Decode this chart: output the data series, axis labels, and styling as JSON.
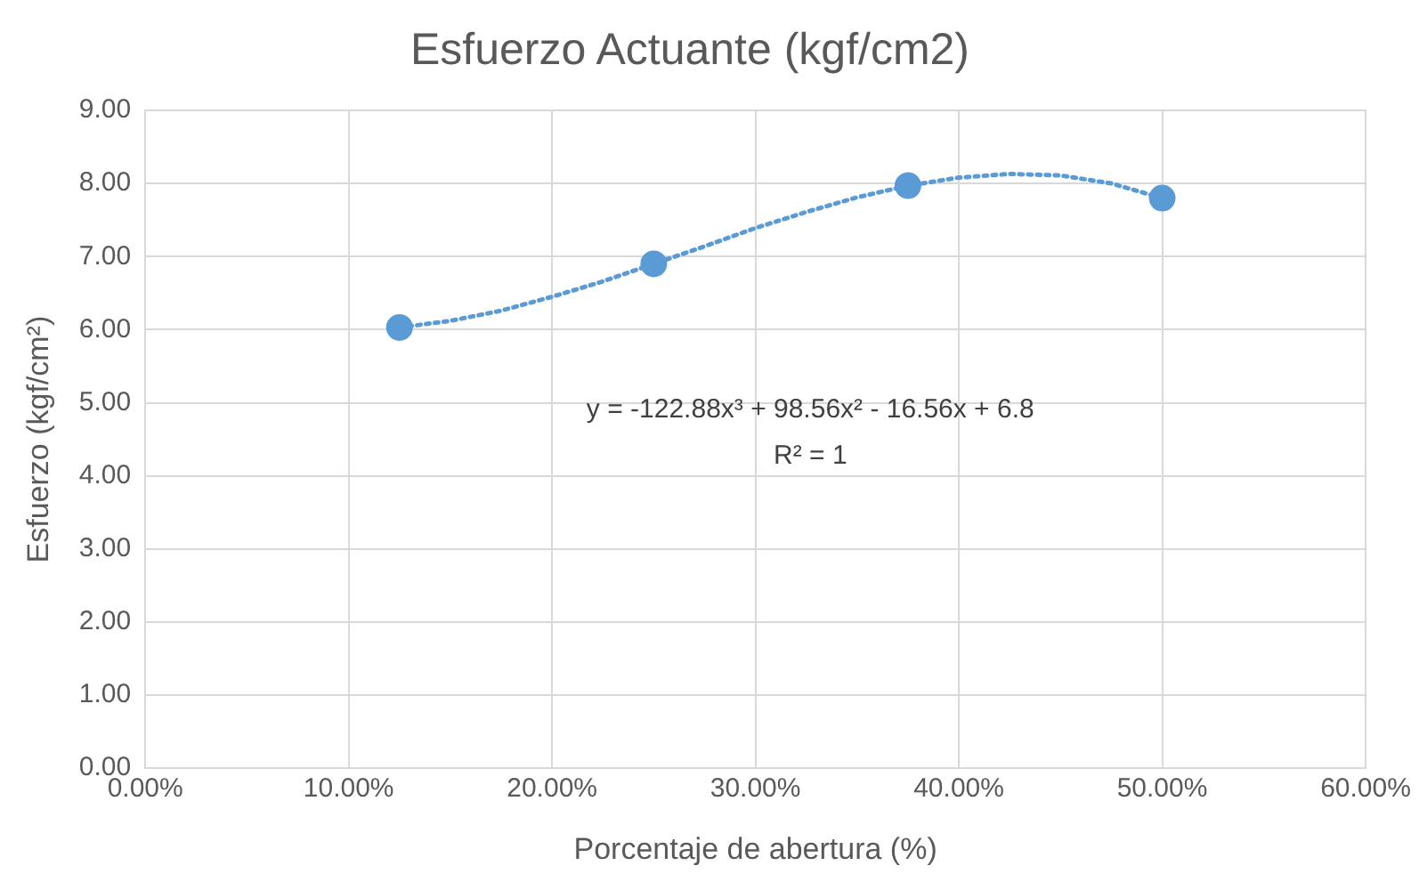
{
  "chart_data": {
    "type": "scatter",
    "title": "Esfuerzo Actuante (kgf/cm2)",
    "xlabel": "Porcentaje de abertura (%)",
    "ylabel": "Esfuerzo (kgf/cm²)",
    "xlim": [
      0,
      60
    ],
    "xticks": [
      {
        "value": 0,
        "label": "0.00%"
      },
      {
        "value": 10,
        "label": "10.00%"
      },
      {
        "value": 20,
        "label": "20.00%"
      },
      {
        "value": 30,
        "label": "30.00%"
      },
      {
        "value": 40,
        "label": "40.00%"
      },
      {
        "value": 50,
        "label": "50.00%"
      },
      {
        "value": 60,
        "label": "60.00%"
      }
    ],
    "ylim": [
      0,
      9
    ],
    "yticks": [
      {
        "value": 0,
        "label": "0.00"
      },
      {
        "value": 1,
        "label": "1.00"
      },
      {
        "value": 2,
        "label": "2.00"
      },
      {
        "value": 3,
        "label": "3.00"
      },
      {
        "value": 4,
        "label": "4.00"
      },
      {
        "value": 5,
        "label": "5.00"
      },
      {
        "value": 6,
        "label": "6.00"
      },
      {
        "value": 7,
        "label": "7.00"
      },
      {
        "value": 8,
        "label": "8.00"
      },
      {
        "value": 9,
        "label": "9.00"
      }
    ],
    "grid": true,
    "legend": false,
    "series": [
      {
        "type": "line",
        "color": "#5b9bd5",
        "marker": "none",
        "line_style": "dotted",
        "x": [
          12.5,
          15,
          17.5,
          20,
          22.5,
          25,
          27.5,
          30,
          32.5,
          35,
          37.5,
          40,
          42.5,
          45,
          47.5,
          50
        ],
        "values": [
          6.03,
          6.12,
          6.26,
          6.45,
          6.66,
          6.9,
          7.14,
          7.39,
          7.61,
          7.81,
          7.97,
          8.08,
          8.13,
          8.11,
          8.0,
          7.8
        ]
      },
      {
        "type": "scatter",
        "color": "#5b9bd5",
        "marker": "circle",
        "x": [
          12.5,
          25,
          37.5,
          50
        ],
        "values": [
          6.03,
          6.9,
          7.97,
          7.8
        ]
      }
    ],
    "annotations": [
      "y = -122.88x³ + 98.56x² - 16.56x + 6.8",
      "R² = 1"
    ]
  }
}
